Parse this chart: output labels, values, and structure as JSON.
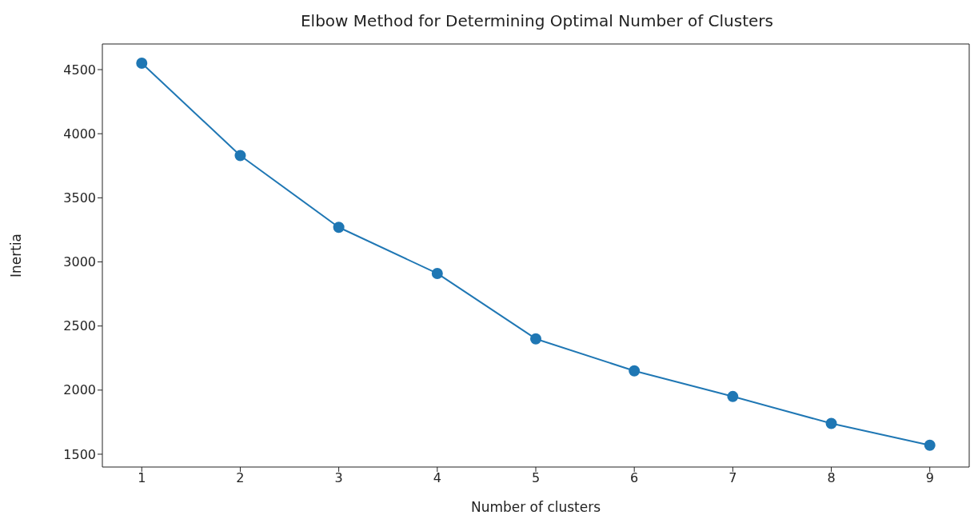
{
  "chart_data": {
    "type": "line",
    "title": "Elbow Method for Determining Optimal Number of Clusters",
    "xlabel": "Number of clusters",
    "ylabel": "Inertia",
    "x": [
      1,
      2,
      3,
      4,
      5,
      6,
      7,
      8,
      9
    ],
    "series": [
      {
        "color": "#1f77b4",
        "values": [
          4550,
          3830,
          3270,
          2910,
          2400,
          2150,
          1950,
          1740,
          1570
        ]
      }
    ],
    "xlim": [
      0.6,
      9.4
    ],
    "xticks": [
      1,
      2,
      3,
      4,
      5,
      6,
      7,
      8,
      9
    ],
    "ylim": [
      1400,
      4700
    ],
    "yticks": [
      1500,
      2000,
      2500,
      3000,
      3500,
      4000,
      4500
    ],
    "marker": "circle",
    "line_style": "solid"
  }
}
